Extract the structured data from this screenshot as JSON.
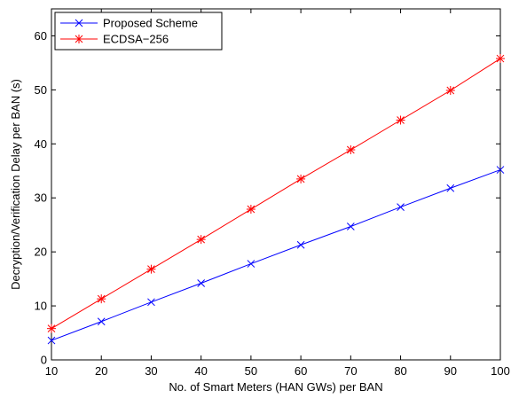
{
  "chart_data": {
    "type": "line",
    "xlabel": "No. of Smart Meters (HAN GWs) per BAN",
    "ylabel": "Decryption/Verification Delay per BAN (s)",
    "xlim": [
      10,
      100
    ],
    "ylim": [
      0,
      65
    ],
    "xticks": [
      10,
      20,
      30,
      40,
      50,
      60,
      70,
      80,
      90,
      100
    ],
    "yticks": [
      0,
      10,
      20,
      30,
      40,
      50,
      60
    ],
    "grid": false,
    "legend_position": "top-left",
    "x": [
      10,
      20,
      30,
      40,
      50,
      60,
      70,
      80,
      90,
      100
    ],
    "series": [
      {
        "name": "Proposed Scheme",
        "color": "#0000ff",
        "marker": "x",
        "values": [
          3.6,
          7.1,
          10.7,
          14.2,
          17.8,
          21.3,
          24.7,
          28.3,
          31.8,
          35.2
        ]
      },
      {
        "name": "ECDSA−256",
        "color": "#ff0000",
        "marker": "asterisk",
        "values": [
          5.8,
          11.3,
          16.8,
          22.3,
          27.9,
          33.5,
          38.9,
          44.4,
          49.9,
          55.8
        ]
      }
    ]
  }
}
